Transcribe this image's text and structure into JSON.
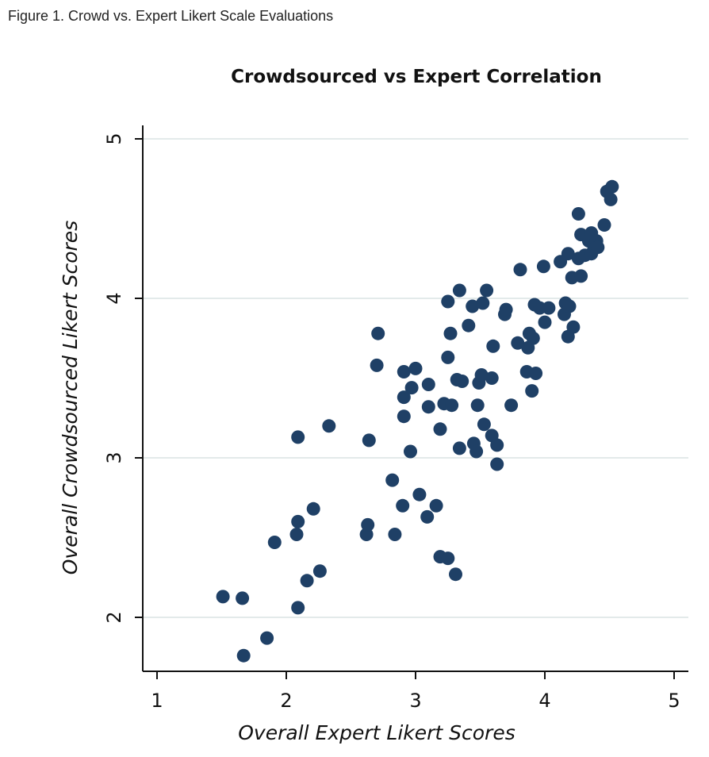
{
  "caption": "Figure 1. Crowd vs. Expert Likert Scale Evaluations",
  "colors": {
    "point": "#1f4066",
    "grid": "#e3eaea",
    "axis": "#111111"
  },
  "chart_data": {
    "type": "scatter",
    "title": "Crowdsourced vs Expert Correlation",
    "xlabel": "Overall Expert Likert Scores",
    "ylabel": "Overall Crowdsourced Likert Scores",
    "xlim": [
      0.9,
      5.15
    ],
    "ylim": [
      1.65,
      5.1
    ],
    "xticks": [
      1,
      2,
      3,
      4,
      5
    ],
    "yticks": [
      2,
      3,
      4,
      5
    ],
    "grid": "horizontal",
    "points": [
      {
        "x": 1.51,
        "y": 2.13
      },
      {
        "x": 1.66,
        "y": 2.12
      },
      {
        "x": 1.67,
        "y": 1.76
      },
      {
        "x": 1.85,
        "y": 1.87
      },
      {
        "x": 1.91,
        "y": 2.47
      },
      {
        "x": 2.08,
        "y": 2.52
      },
      {
        "x": 2.09,
        "y": 2.6
      },
      {
        "x": 2.09,
        "y": 3.13
      },
      {
        "x": 2.09,
        "y": 2.06
      },
      {
        "x": 2.16,
        "y": 2.23
      },
      {
        "x": 2.21,
        "y": 2.68
      },
      {
        "x": 2.26,
        "y": 2.29
      },
      {
        "x": 2.33,
        "y": 3.2
      },
      {
        "x": 2.62,
        "y": 2.52
      },
      {
        "x": 2.63,
        "y": 2.58
      },
      {
        "x": 2.64,
        "y": 3.11
      },
      {
        "x": 2.7,
        "y": 3.58
      },
      {
        "x": 2.71,
        "y": 3.78
      },
      {
        "x": 2.82,
        "y": 2.86
      },
      {
        "x": 2.84,
        "y": 2.52
      },
      {
        "x": 2.9,
        "y": 2.7
      },
      {
        "x": 2.91,
        "y": 3.38
      },
      {
        "x": 2.91,
        "y": 3.26
      },
      {
        "x": 2.91,
        "y": 3.54
      },
      {
        "x": 2.96,
        "y": 3.04
      },
      {
        "x": 2.97,
        "y": 3.44
      },
      {
        "x": 3.0,
        "y": 3.56
      },
      {
        "x": 3.03,
        "y": 2.77
      },
      {
        "x": 3.09,
        "y": 2.63
      },
      {
        "x": 3.1,
        "y": 3.32
      },
      {
        "x": 3.1,
        "y": 3.46
      },
      {
        "x": 3.16,
        "y": 2.7
      },
      {
        "x": 3.19,
        "y": 3.18
      },
      {
        "x": 3.19,
        "y": 2.38
      },
      {
        "x": 3.22,
        "y": 3.34
      },
      {
        "x": 3.25,
        "y": 3.63
      },
      {
        "x": 3.25,
        "y": 3.98
      },
      {
        "x": 3.25,
        "y": 2.37
      },
      {
        "x": 3.27,
        "y": 3.78
      },
      {
        "x": 3.28,
        "y": 3.33
      },
      {
        "x": 3.31,
        "y": 2.27
      },
      {
        "x": 3.32,
        "y": 3.49
      },
      {
        "x": 3.34,
        "y": 4.05
      },
      {
        "x": 3.34,
        "y": 3.06
      },
      {
        "x": 3.36,
        "y": 3.48
      },
      {
        "x": 3.41,
        "y": 3.83
      },
      {
        "x": 3.44,
        "y": 3.95
      },
      {
        "x": 3.45,
        "y": 3.09
      },
      {
        "x": 3.47,
        "y": 3.04
      },
      {
        "x": 3.48,
        "y": 3.33
      },
      {
        "x": 3.49,
        "y": 3.47
      },
      {
        "x": 3.51,
        "y": 3.52
      },
      {
        "x": 3.52,
        "y": 3.97
      },
      {
        "x": 3.53,
        "y": 3.21
      },
      {
        "x": 3.55,
        "y": 4.05
      },
      {
        "x": 3.59,
        "y": 3.14
      },
      {
        "x": 3.59,
        "y": 3.5
      },
      {
        "x": 3.6,
        "y": 3.7
      },
      {
        "x": 3.63,
        "y": 2.96
      },
      {
        "x": 3.63,
        "y": 3.08
      },
      {
        "x": 3.69,
        "y": 3.9
      },
      {
        "x": 3.7,
        "y": 3.93
      },
      {
        "x": 3.74,
        "y": 3.33
      },
      {
        "x": 3.79,
        "y": 3.72
      },
      {
        "x": 3.81,
        "y": 4.18
      },
      {
        "x": 3.86,
        "y": 3.54
      },
      {
        "x": 3.87,
        "y": 3.69
      },
      {
        "x": 3.88,
        "y": 3.78
      },
      {
        "x": 3.9,
        "y": 3.42
      },
      {
        "x": 3.91,
        "y": 3.75
      },
      {
        "x": 3.92,
        "y": 3.96
      },
      {
        "x": 3.93,
        "y": 3.53
      },
      {
        "x": 3.96,
        "y": 3.94
      },
      {
        "x": 3.99,
        "y": 4.2
      },
      {
        "x": 4.0,
        "y": 3.85
      },
      {
        "x": 4.03,
        "y": 3.94
      },
      {
        "x": 4.12,
        "y": 4.23
      },
      {
        "x": 4.15,
        "y": 3.9
      },
      {
        "x": 4.16,
        "y": 3.97
      },
      {
        "x": 4.18,
        "y": 4.28
      },
      {
        "x": 4.18,
        "y": 3.76
      },
      {
        "x": 4.19,
        "y": 3.95
      },
      {
        "x": 4.21,
        "y": 4.13
      },
      {
        "x": 4.22,
        "y": 3.82
      },
      {
        "x": 4.26,
        "y": 4.25
      },
      {
        "x": 4.26,
        "y": 4.53
      },
      {
        "x": 4.28,
        "y": 4.14
      },
      {
        "x": 4.28,
        "y": 4.4
      },
      {
        "x": 4.31,
        "y": 4.27
      },
      {
        "x": 4.34,
        "y": 4.36
      },
      {
        "x": 4.36,
        "y": 4.28
      },
      {
        "x": 4.36,
        "y": 4.41
      },
      {
        "x": 4.38,
        "y": 4.33
      },
      {
        "x": 4.4,
        "y": 4.36
      },
      {
        "x": 4.41,
        "y": 4.32
      },
      {
        "x": 4.46,
        "y": 4.46
      },
      {
        "x": 4.48,
        "y": 4.67
      },
      {
        "x": 4.51,
        "y": 4.62
      },
      {
        "x": 4.52,
        "y": 4.7
      }
    ]
  }
}
